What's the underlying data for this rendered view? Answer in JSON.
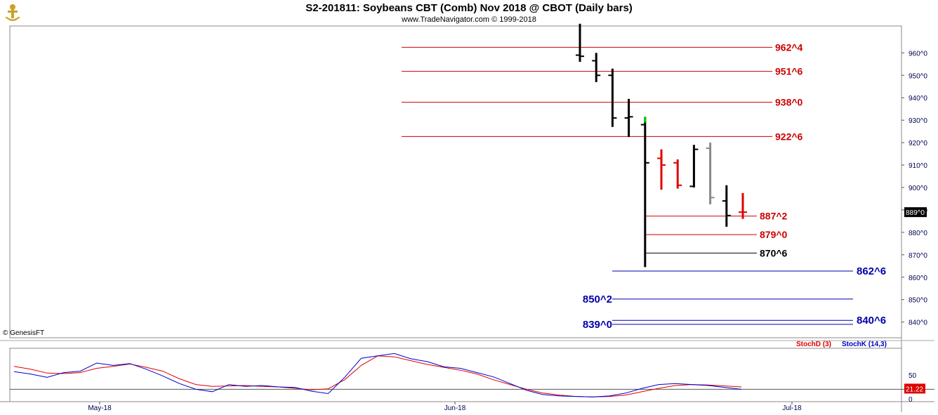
{
  "header": {
    "title": "S2-201811:  Soybeans CBT (Comb) Nov 2018 @ CBOT  (Daily bars)",
    "subtitle": "www.TradeNavigator.com © 1999-2018",
    "copyright": "© GenesisFT"
  },
  "colors": {
    "up": "#000000",
    "down": "#e00000",
    "neutral": "#888888",
    "level_red": "#cc0000",
    "level_blue": "#0000aa",
    "stoch_d": "#dd0000",
    "stoch_k": "#0000cc",
    "axis_text": "#000055",
    "last_up_tick": "#00cc00"
  },
  "chart_data": [
    {
      "type": "ohlc",
      "name": "price",
      "ylim": [
        833,
        972
      ],
      "y_ticks": [
        "840^0",
        "850^0",
        "860^0",
        "870^0",
        "880^0",
        "890^0",
        "900^0",
        "910^0",
        "920^0",
        "930^0",
        "940^0",
        "950^0",
        "960^0"
      ],
      "y_tick_values": [
        840,
        850,
        860,
        870,
        880,
        890,
        900,
        910,
        920,
        930,
        940,
        950,
        960
      ],
      "x_labels": [
        "May-18",
        "Jun-18",
        "Jul-18"
      ],
      "last_price_label": "889^0",
      "last_price": 889,
      "bars": [
        {
          "o": 959.0,
          "h": 973.0,
          "l": 956.0,
          "c": 958.5,
          "color": "up"
        },
        {
          "o": 956.5,
          "h": 960.0,
          "l": 947.0,
          "c": 950.0,
          "color": "up"
        },
        {
          "o": 950.0,
          "h": 953.0,
          "l": 927.0,
          "c": 931.0,
          "color": "up"
        },
        {
          "o": 931.0,
          "h": 939.5,
          "l": 922.5,
          "c": 931.5,
          "color": "up"
        },
        {
          "o": 928.0,
          "h": 931.5,
          "l": 864.5,
          "c": 911.0,
          "color": "up"
        },
        {
          "o": 913.0,
          "h": 917.0,
          "l": 899.0,
          "c": 910.0,
          "color": "down"
        },
        {
          "o": 911.0,
          "h": 912.5,
          "l": 899.5,
          "c": 901.0,
          "color": "down"
        },
        {
          "o": 900.5,
          "h": 919.0,
          "l": 900.0,
          "c": 917.0,
          "color": "up"
        },
        {
          "o": 917.5,
          "h": 920.0,
          "l": 892.5,
          "c": 895.5,
          "color": "neutral"
        },
        {
          "o": 894.0,
          "h": 901.0,
          "l": 882.5,
          "c": 887.5,
          "color": "up"
        },
        {
          "o": 889.0,
          "h": 897.5,
          "l": 886.0,
          "c": 889.0,
          "color": "down"
        }
      ],
      "levels": [
        {
          "label": "962^4",
          "value": 962.5,
          "color": "level_red",
          "side": "right"
        },
        {
          "label": "951^6",
          "value": 951.75,
          "color": "level_red",
          "side": "right"
        },
        {
          "label": "938^0",
          "value": 938.0,
          "color": "level_red",
          "side": "right"
        },
        {
          "label": "922^6",
          "value": 922.75,
          "color": "level_red",
          "side": "right"
        },
        {
          "label": "887^2",
          "value": 887.25,
          "color": "level_red",
          "side": "right"
        },
        {
          "label": "879^0",
          "value": 879.0,
          "color": "level_red",
          "side": "right"
        },
        {
          "label": "870^6",
          "value": 870.75,
          "color": "up",
          "side": "right"
        },
        {
          "label": "862^6",
          "value": 862.75,
          "color": "level_blue",
          "side": "right"
        },
        {
          "label": "850^2",
          "value": 850.25,
          "color": "level_blue",
          "side": "left"
        },
        {
          "label": "840^6",
          "value": 840.75,
          "color": "level_blue",
          "side": "right"
        },
        {
          "label": "839^0",
          "value": 839.0,
          "color": "level_blue",
          "side": "left"
        }
      ]
    },
    {
      "type": "line",
      "name": "stochastic",
      "ylim": [
        0,
        100
      ],
      "y_ticks": [
        "50",
        "0"
      ],
      "y_tick_values": [
        50,
        0
      ],
      "reference_line": 20,
      "last_value_label": "21.22",
      "legend": [
        "StochD (3)",
        "StochK (14,3)"
      ],
      "series": [
        {
          "name": "StochD (3)",
          "color": "stoch_d",
          "values": [
            68,
            62,
            54,
            53,
            55,
            64,
            68,
            73,
            66,
            58,
            42,
            30,
            26,
            27,
            28,
            26,
            25,
            22,
            19,
            21,
            40,
            70,
            90,
            88,
            80,
            72,
            66,
            60,
            52,
            40,
            30,
            20,
            12,
            8,
            5,
            4,
            5,
            8,
            15,
            22,
            28,
            30,
            29,
            27,
            25
          ]
        },
        {
          "name": "StochK (14,3)",
          "color": "stoch_k",
          "values": [
            57,
            52,
            45,
            55,
            58,
            75,
            70,
            74,
            62,
            48,
            32,
            20,
            15,
            30,
            26,
            28,
            25,
            24,
            16,
            11,
            45,
            85,
            90,
            95,
            84,
            78,
            67,
            64,
            55,
            46,
            32,
            18,
            9,
            6,
            5,
            4,
            6,
            12,
            22,
            30,
            32,
            30,
            28,
            24,
            20
          ]
        }
      ]
    }
  ]
}
